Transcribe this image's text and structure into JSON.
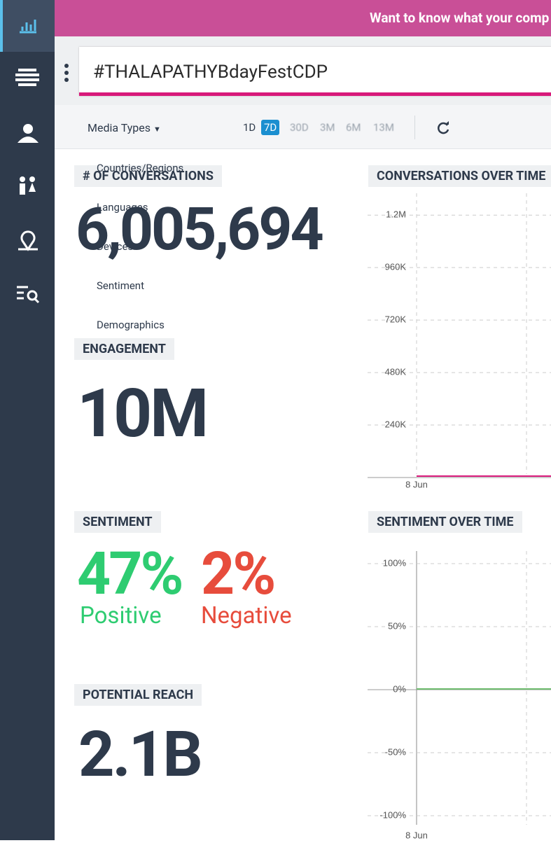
{
  "banner": "Want to know what your comp",
  "search": "#THALAPATHYBdayFestCDP",
  "filters": {
    "media_types": "Media Types",
    "ranges": [
      "1D",
      "7D",
      "30D",
      "3M",
      "6M",
      "13M"
    ],
    "active_range": "7D"
  },
  "menu": [
    "Countries/Regions",
    "Languages",
    "Devices",
    "Sentiment",
    "Demographics"
  ],
  "conversations": {
    "title": "# OF CONVERSATIONS",
    "value": "6,005,694"
  },
  "engagement": {
    "title": "ENGAGEMENT",
    "value": "10M"
  },
  "sentiment": {
    "title": "SENTIMENT",
    "positive": {
      "value": "47%",
      "label": "Positive"
    },
    "negative": {
      "value": "2%",
      "label": "Negative"
    }
  },
  "reach": {
    "title": "POTENTIAL REACH",
    "value": "2.1B"
  },
  "charts": [
    {
      "title": "CONVERSATIONS OVER TIME",
      "ylim": [
        0,
        1300000
      ],
      "yticks": [
        {
          "value": 1200000,
          "label": "1.2M"
        },
        {
          "value": 960000,
          "label": "960K"
        },
        {
          "value": 720000,
          "label": "720K"
        },
        {
          "value": 480000,
          "label": "480K"
        },
        {
          "value": 240000,
          "label": "240K"
        }
      ],
      "x_label": "8 Jun"
    },
    {
      "title": "SENTIMENT OVER TIME",
      "ylim": [
        -110,
        110
      ],
      "yticks": [
        {
          "value": 100,
          "label": "100%"
        },
        {
          "value": 50,
          "label": "50%"
        },
        {
          "value": 0,
          "label": "0%"
        },
        {
          "value": -50,
          "label": "-50%"
        },
        {
          "value": -100,
          "label": "-100%"
        }
      ],
      "x_label": "8 Jun"
    }
  ]
}
